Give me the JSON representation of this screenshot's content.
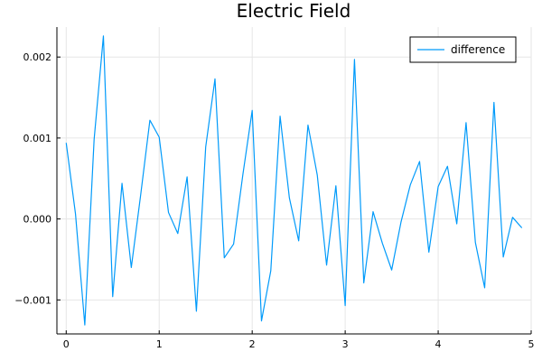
{
  "chart_data": {
    "type": "line",
    "title": "Electric Field",
    "xlabel": "",
    "ylabel": "",
    "xlim": [
      -0.1,
      5.0
    ],
    "ylim": [
      -0.00142,
      0.00237
    ],
    "xticks": [
      0,
      1,
      2,
      3,
      4,
      5
    ],
    "xtick_labels": [
      "0",
      "1",
      "2",
      "3",
      "4",
      "5"
    ],
    "yticks": [
      -0.001,
      0.0,
      0.001,
      0.002
    ],
    "ytick_labels": [
      "−0.001",
      "0.000",
      "0.001",
      "0.002"
    ],
    "grid": true,
    "legend_position": "top-right",
    "series": [
      {
        "name": "difference",
        "color": "#009AFA",
        "x": [
          0.0,
          0.1,
          0.2,
          0.3,
          0.4,
          0.5,
          0.6,
          0.7,
          0.8,
          0.9,
          1.0,
          1.1,
          1.2,
          1.3,
          1.4,
          1.5,
          1.6,
          1.7,
          1.8,
          1.9,
          2.0,
          2.1,
          2.2,
          2.3,
          2.4,
          2.5,
          2.6,
          2.7,
          2.8,
          2.9,
          3.0,
          3.1,
          3.2,
          3.3,
          3.4,
          3.5,
          3.6,
          3.7,
          3.8,
          3.9,
          4.0,
          4.1,
          4.2,
          4.3,
          4.4,
          4.5,
          4.6,
          4.7,
          4.8,
          4.9
        ],
        "y": [
          0.00094,
          6e-05,
          -0.00131,
          0.00098,
          0.00226,
          -0.00096,
          0.00044,
          -0.0006,
          0.00029,
          0.00122,
          0.00101,
          8e-05,
          -0.00018,
          0.00052,
          -0.00114,
          0.00089,
          0.00173,
          -0.00048,
          -0.00031,
          0.00055,
          0.00134,
          -0.00126,
          -0.00064,
          0.00127,
          0.00026,
          -0.00027,
          0.00116,
          0.00054,
          -0.00057,
          0.00041,
          -0.00107,
          0.00197,
          -0.00079,
          9e-05,
          -0.0003,
          -0.00063,
          -4e-05,
          0.00042,
          0.00071,
          -0.00041,
          0.0004,
          0.00065,
          -6e-05,
          0.00119,
          -0.00029,
          -0.00085,
          0.00144,
          -0.00047,
          2e-05,
          -0.00011
        ]
      }
    ]
  }
}
